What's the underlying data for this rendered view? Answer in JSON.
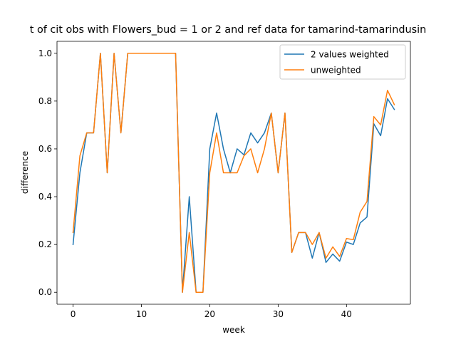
{
  "chart_data": {
    "type": "line",
    "title": "t of cit obs with Flowers_bud = 1 or 2 and ref data for tamarind-tamarindusin",
    "xlabel": "week",
    "ylabel": "difference",
    "xlim": [
      -2.35,
      49.35
    ],
    "ylim": [
      -0.05,
      1.05
    ],
    "xticks": [
      0,
      10,
      20,
      30,
      40
    ],
    "yticks": [
      0.0,
      0.2,
      0.4,
      0.6,
      0.8,
      1.0
    ],
    "xtick_labels": [
      "0",
      "10",
      "20",
      "30",
      "40"
    ],
    "ytick_labels": [
      "0.0",
      "0.2",
      "0.4",
      "0.6",
      "0.8",
      "1.0"
    ],
    "grid": false,
    "legend_position": "upper right",
    "x": [
      0,
      1,
      2,
      3,
      4,
      5,
      6,
      7,
      8,
      9,
      10,
      11,
      12,
      13,
      14,
      15,
      16,
      17,
      18,
      19,
      20,
      21,
      22,
      23,
      24,
      25,
      26,
      27,
      28,
      29,
      30,
      31,
      32,
      33,
      34,
      35,
      36,
      37,
      38,
      39,
      40,
      41,
      42,
      43,
      44,
      45,
      46,
      47
    ],
    "series": [
      {
        "name": "2 values weighted",
        "color": "#1f77b4",
        "values": [
          0.2,
          0.5,
          0.667,
          0.667,
          1.0,
          0.5,
          1.0,
          0.667,
          1.0,
          1.0,
          1.0,
          1.0,
          1.0,
          1.0,
          1.0,
          1.0,
          0.0,
          0.4,
          0.0,
          0.0,
          0.6,
          0.75,
          0.6,
          0.5,
          0.6,
          0.575,
          0.667,
          0.625,
          0.667,
          0.75,
          0.5,
          0.75,
          0.167,
          0.25,
          0.25,
          0.143,
          0.25,
          0.125,
          0.16,
          0.13,
          0.21,
          0.2,
          0.29,
          0.315,
          0.705,
          0.655,
          0.81,
          0.765
        ]
      },
      {
        "name": "unweighted",
        "color": "#ff7f0e",
        "values": [
          0.25,
          0.571,
          0.667,
          0.667,
          1.0,
          0.5,
          1.0,
          0.667,
          1.0,
          1.0,
          1.0,
          1.0,
          1.0,
          1.0,
          1.0,
          1.0,
          0.0,
          0.25,
          0.0,
          0.0,
          0.5,
          0.667,
          0.5,
          0.5,
          0.5,
          0.571,
          0.6,
          0.5,
          0.6,
          0.75,
          0.5,
          0.75,
          0.167,
          0.25,
          0.25,
          0.2,
          0.25,
          0.143,
          0.19,
          0.15,
          0.225,
          0.22,
          0.335,
          0.38,
          0.735,
          0.7,
          0.845,
          0.785
        ]
      }
    ]
  }
}
